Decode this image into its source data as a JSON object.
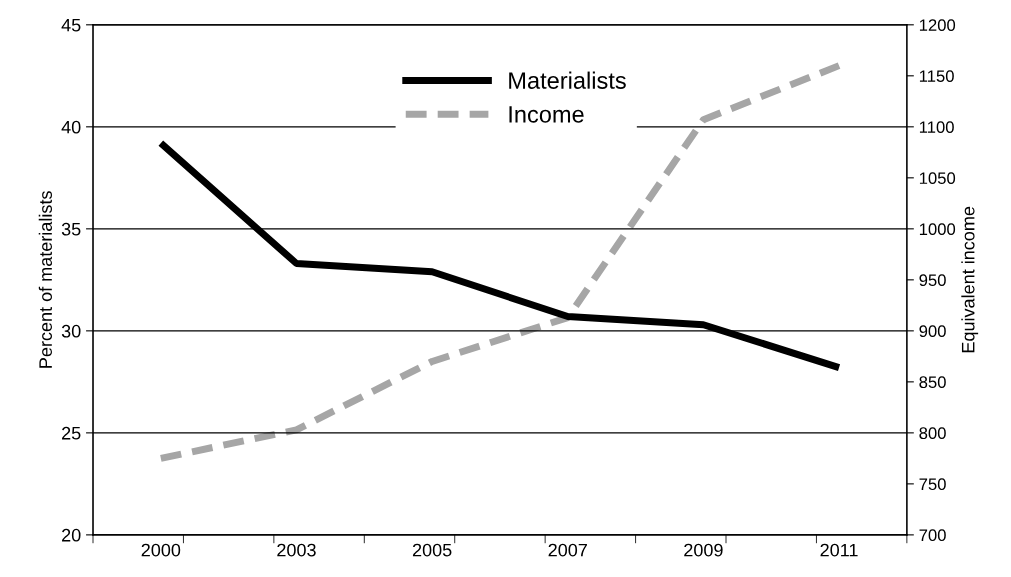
{
  "chart_data": {
    "type": "line",
    "categories": [
      "2000",
      "2003",
      "2005",
      "2007",
      "2009",
      "2011"
    ],
    "series": [
      {
        "name": "Materialists",
        "color": "#000000",
        "values": [
          39.2,
          33.3,
          32.9,
          30.7,
          30.3,
          28.2
        ],
        "line_style": "solid"
      },
      {
        "name": "Income",
        "color": "#a6a6a6",
        "values": [
          775,
          803,
          870,
          913,
          1107,
          1160
        ],
        "axis": "y2",
        "line_style": "dashed"
      }
    ],
    "ylabel": "Percent of materialists",
    "y2label": "Equivalent income",
    "ylim": [
      20,
      45
    ],
    "yticks": [
      20,
      25,
      30,
      35,
      40,
      45
    ],
    "y2lim": [
      700,
      1200
    ],
    "y2ticks": [
      700,
      750,
      800,
      850,
      900,
      950,
      1000,
      1050,
      1100,
      1150,
      1200
    ],
    "grid": "y",
    "legend": "top",
    "marker": "none"
  }
}
